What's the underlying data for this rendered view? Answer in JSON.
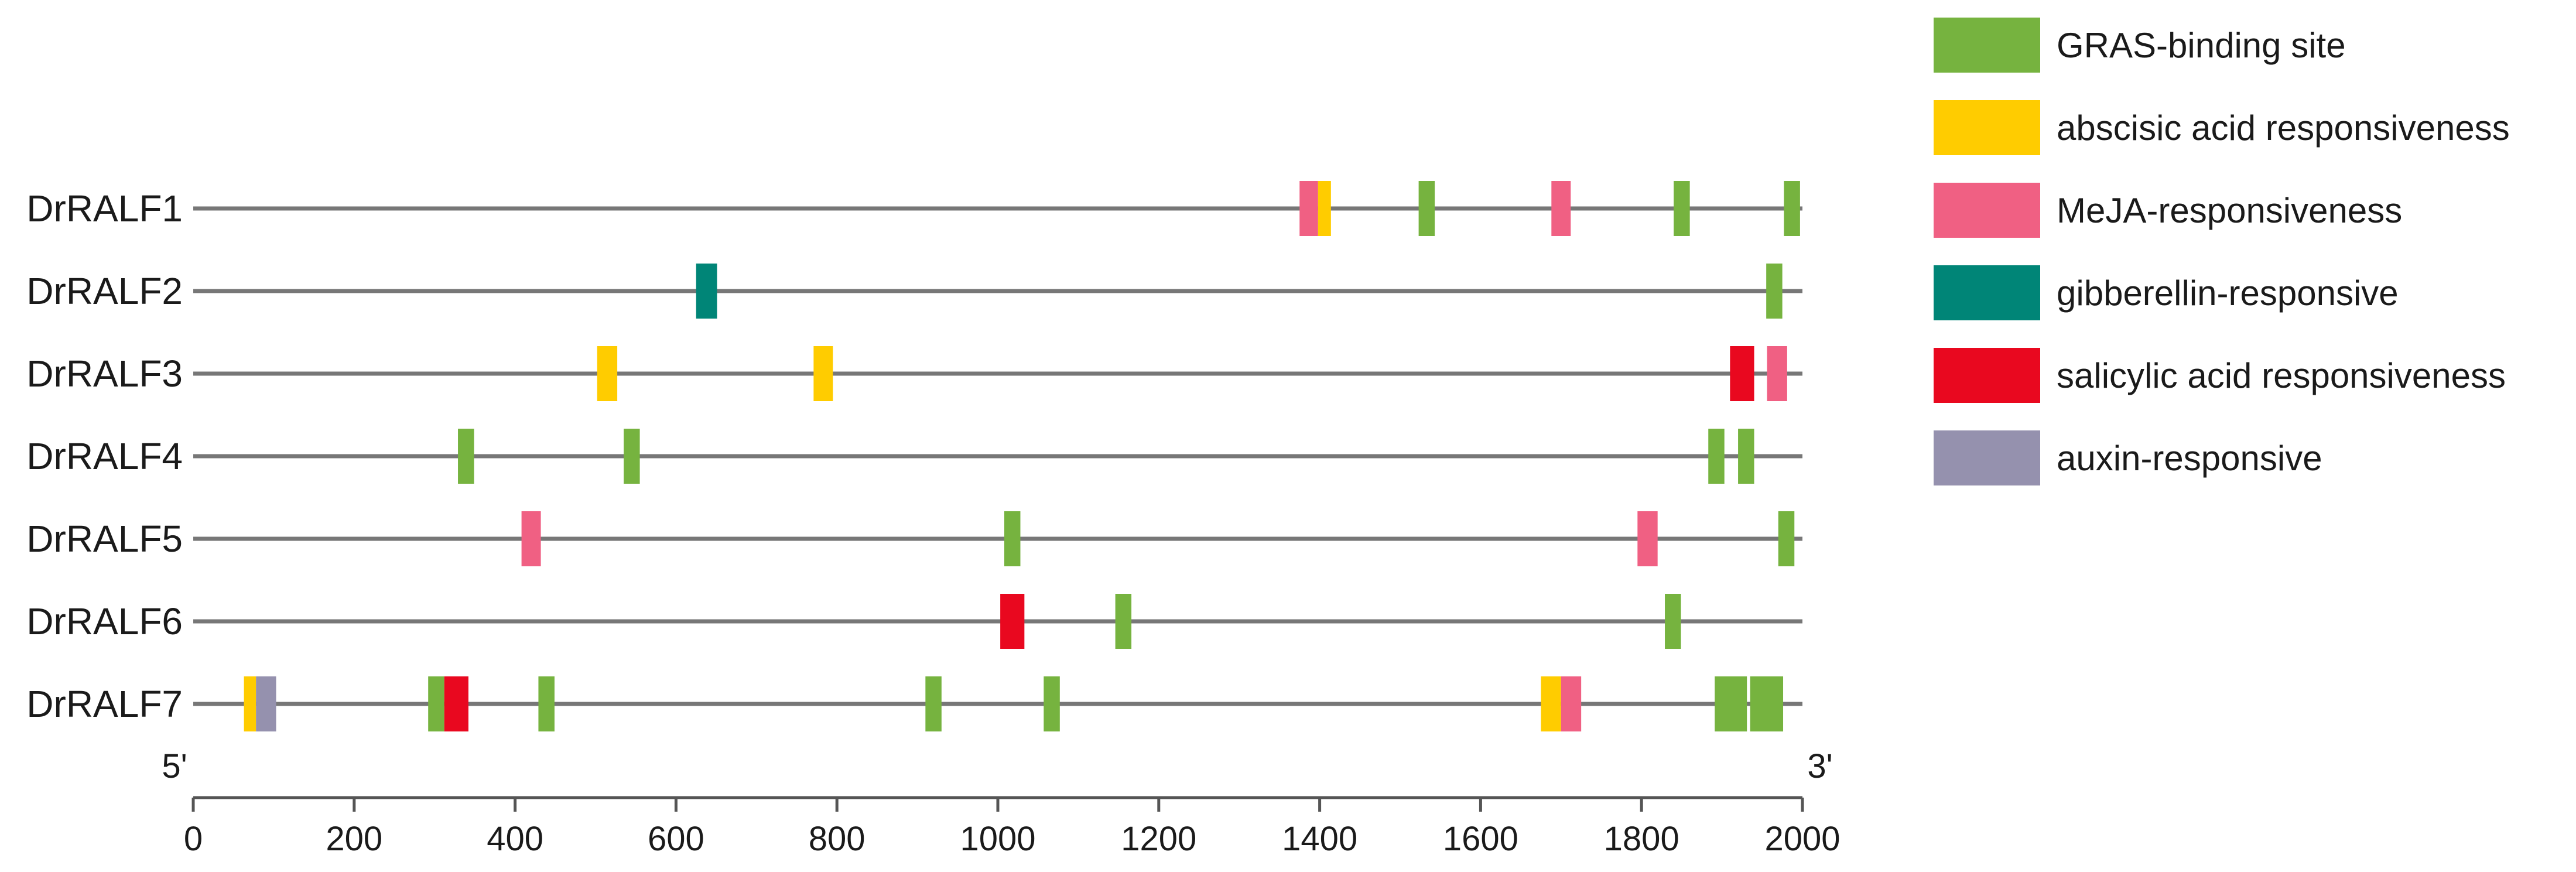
{
  "chart_data": {
    "type": "gene-structure",
    "xlim": [
      0,
      2000
    ],
    "x_ticks": [
      0,
      200,
      400,
      600,
      800,
      1000,
      1200,
      1400,
      1600,
      1800,
      2000
    ],
    "end_labels": {
      "left": "5'",
      "right": "3'"
    },
    "element_types": [
      {
        "id": "gras",
        "label": "GRAS-binding site",
        "color": "#76b33f"
      },
      {
        "id": "aba",
        "label": "abscisic acid responsiveness",
        "color": "#ffcc00"
      },
      {
        "id": "meja",
        "label": "MeJA-responsiveness",
        "color": "#f06083"
      },
      {
        "id": "ga",
        "label": "gibberellin-responsive",
        "color": "#008577"
      },
      {
        "id": "sa",
        "label": "salicylic acid responsiveness",
        "color": "#e9081f"
      },
      {
        "id": "auxin",
        "label": "auxin-responsive",
        "color": "#9591ae"
      }
    ],
    "genes": [
      {
        "name": "DrRALF1",
        "elements": [
          {
            "type": "meja",
            "start": 1375,
            "end": 1398
          },
          {
            "type": "aba",
            "start": 1398,
            "end": 1414
          },
          {
            "type": "gras",
            "start": 1523,
            "end": 1543
          },
          {
            "type": "meja",
            "start": 1688,
            "end": 1712
          },
          {
            "type": "gras",
            "start": 1840,
            "end": 1860
          },
          {
            "type": "gras",
            "start": 1977,
            "end": 1997
          }
        ]
      },
      {
        "name": "DrRALF2",
        "elements": [
          {
            "type": "ga",
            "start": 625,
            "end": 651
          },
          {
            "type": "gras",
            "start": 1955,
            "end": 1975
          }
        ]
      },
      {
        "name": "DrRALF3",
        "elements": [
          {
            "type": "aba",
            "start": 502,
            "end": 527
          },
          {
            "type": "aba",
            "start": 771,
            "end": 795
          },
          {
            "type": "sa",
            "start": 1910,
            "end": 1940
          },
          {
            "type": "meja",
            "start": 1956,
            "end": 1981
          }
        ]
      },
      {
        "name": "DrRALF4",
        "elements": [
          {
            "type": "gras",
            "start": 329,
            "end": 349
          },
          {
            "type": "gras",
            "start": 535,
            "end": 555
          },
          {
            "type": "gras",
            "start": 1883,
            "end": 1903
          },
          {
            "type": "gras",
            "start": 1920,
            "end": 1940
          }
        ]
      },
      {
        "name": "DrRALF5",
        "elements": [
          {
            "type": "meja",
            "start": 408,
            "end": 432
          },
          {
            "type": "gras",
            "start": 1008,
            "end": 1028
          },
          {
            "type": "meja",
            "start": 1795,
            "end": 1820
          },
          {
            "type": "gras",
            "start": 1970,
            "end": 1990
          }
        ]
      },
      {
        "name": "DrRALF6",
        "elements": [
          {
            "type": "sa",
            "start": 1003,
            "end": 1033
          },
          {
            "type": "gras",
            "start": 1146,
            "end": 1166
          },
          {
            "type": "gras",
            "start": 1829,
            "end": 1849
          }
        ]
      },
      {
        "name": "DrRALF7",
        "elements": [
          {
            "type": "aba",
            "start": 63,
            "end": 78
          },
          {
            "type": "auxin",
            "start": 78,
            "end": 103
          },
          {
            "type": "gras",
            "start": 292,
            "end": 312
          },
          {
            "type": "sa",
            "start": 312,
            "end": 342
          },
          {
            "type": "gras",
            "start": 429,
            "end": 449
          },
          {
            "type": "gras",
            "start": 910,
            "end": 930
          },
          {
            "type": "gras",
            "start": 1057,
            "end": 1077
          },
          {
            "type": "aba",
            "start": 1675,
            "end": 1700
          },
          {
            "type": "meja",
            "start": 1700,
            "end": 1725
          },
          {
            "type": "gras",
            "start": 1891,
            "end": 1931
          },
          {
            "type": "gras",
            "start": 1935,
            "end": 1976
          }
        ]
      }
    ]
  }
}
